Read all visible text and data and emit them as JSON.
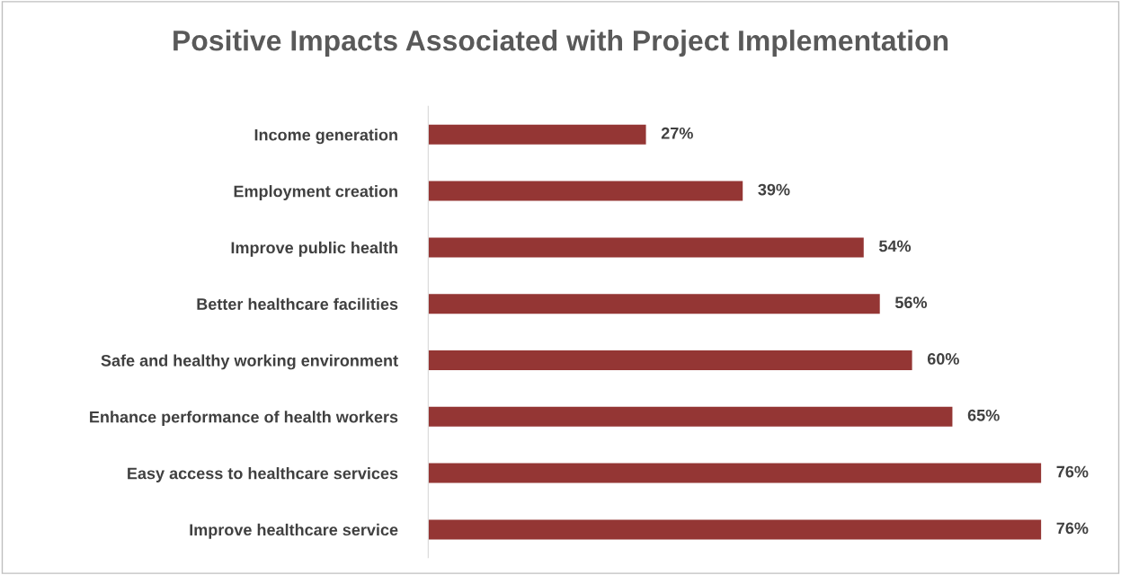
{
  "chart_data": {
    "type": "bar",
    "orientation": "horizontal",
    "title": "Positive Impacts Associated with Project Implementation",
    "categories": [
      "Income generation",
      "Employment creation",
      "Improve public health",
      "Better healthcare facilities",
      "Safe and healthy working environment",
      "Enhance performance of health workers",
      "Easy access to healthcare services",
      "Improve healthcare service"
    ],
    "values": [
      27,
      39,
      54,
      56,
      60,
      65,
      76,
      76
    ],
    "value_labels": [
      "27%",
      "39%",
      "54%",
      "56%",
      "60%",
      "65%",
      "76%",
      "76%"
    ],
    "color": "#943634",
    "grid": false,
    "legend": false
  }
}
